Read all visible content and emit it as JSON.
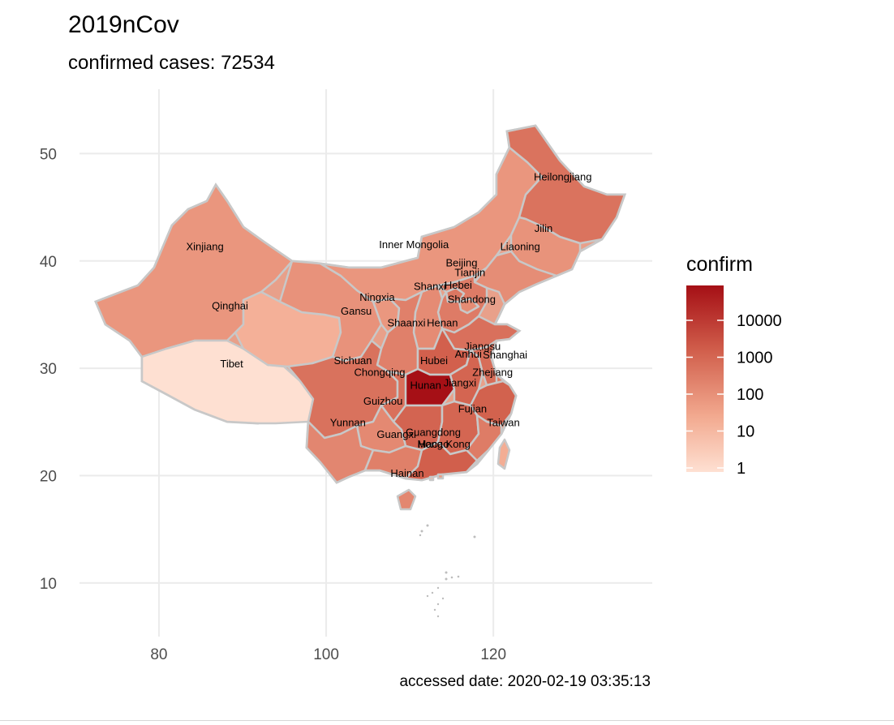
{
  "title": "2019nCov",
  "subtitle": "confirmed cases: 72534",
  "caption": "accessed date: 2020-02-19 03:35:13",
  "chart_data": {
    "type": "choropleth",
    "xlim": [
      70.5,
      139
    ],
    "ylim": [
      5,
      56
    ],
    "x_ticks": [
      80,
      100,
      120
    ],
    "y_ticks": [
      10,
      20,
      30,
      40,
      50
    ],
    "grid": true,
    "legend": {
      "title": "confirm",
      "position": "right",
      "scale": "log10",
      "breaks": [
        10000,
        1000,
        100,
        10,
        1
      ],
      "color_low": "#fee0d2",
      "color_high": "#a50f15"
    },
    "regions": [
      {
        "name": "Xinjiang",
        "confirm": 75,
        "lon": 85.5,
        "lat": 41.3
      },
      {
        "name": "Tibet",
        "confirm": 1,
        "lon": 88.7,
        "lat": 30.4
      },
      {
        "name": "Qinghai",
        "confirm": 18,
        "lon": 88.5,
        "lat": 35.8
      },
      {
        "name": "Gansu",
        "confirm": 91,
        "lon": 103.6,
        "lat": 35.3
      },
      {
        "name": "Ningxia",
        "confirm": 71,
        "lon": 106.1,
        "lat": 36.6
      },
      {
        "name": "Inner Mongolia",
        "confirm": 75,
        "lon": 110.5,
        "lat": 41.5
      },
      {
        "name": "Heilongjiang",
        "confirm": 464,
        "lon": 128.3,
        "lat": 47.8
      },
      {
        "name": "Jilin",
        "confirm": 89,
        "lon": 126.0,
        "lat": 43.0
      },
      {
        "name": "Liaoning",
        "confirm": 121,
        "lon": 123.2,
        "lat": 41.3
      },
      {
        "name": "Beijing",
        "confirm": 387,
        "lon": 116.2,
        "lat": 39.8
      },
      {
        "name": "Tianjin",
        "confirm": 130,
        "lon": 117.2,
        "lat": 38.9
      },
      {
        "name": "Hebei",
        "confirm": 302,
        "lon": 115.8,
        "lat": 37.7
      },
      {
        "name": "Shanxi",
        "confirm": 132,
        "lon": 112.4,
        "lat": 37.6
      },
      {
        "name": "Shandong",
        "confirm": 544,
        "lon": 117.4,
        "lat": 36.4
      },
      {
        "name": "Shaanxi",
        "confirm": 242,
        "lon": 109.6,
        "lat": 34.2
      },
      {
        "name": "Henan",
        "confirm": 1254,
        "lon": 113.9,
        "lat": 34.2
      },
      {
        "name": "Sichuan",
        "confirm": 508,
        "lon": 103.2,
        "lat": 30.7
      },
      {
        "name": "Chongqing",
        "confirm": 551,
        "lon": 106.4,
        "lat": 29.6
      },
      {
        "name": "Hubei",
        "confirm": 61682,
        "lon": 112.9,
        "lat": 30.7
      },
      {
        "name": "Anhui",
        "confirm": 986,
        "lon": 117.0,
        "lat": 31.3
      },
      {
        "name": "Jiangsu",
        "confirm": 631,
        "lon": 118.7,
        "lat": 32.0
      },
      {
        "name": "Shanghai",
        "confirm": 333,
        "lon": 121.4,
        "lat": 31.2
      },
      {
        "name": "Zhejiang",
        "confirm": 1175,
        "lon": 119.9,
        "lat": 29.6
      },
      {
        "name": "Hunan",
        "confirm": 1008,
        "lon": 111.9,
        "lat": 28.4
      },
      {
        "name": "Jiangxi",
        "confirm": 937,
        "lon": 116.0,
        "lat": 28.6
      },
      {
        "name": "Fujian",
        "confirm": 293,
        "lon": 117.5,
        "lat": 26.2
      },
      {
        "name": "Taiwan",
        "confirm": 22,
        "lon": 121.2,
        "lat": 24.9
      },
      {
        "name": "Guizhou",
        "confirm": 146,
        "lon": 106.8,
        "lat": 26.9
      },
      {
        "name": "Yunnan",
        "confirm": 172,
        "lon": 102.6,
        "lat": 24.9
      },
      {
        "name": "Guangxi",
        "confirm": 244,
        "lon": 108.4,
        "lat": 23.8
      },
      {
        "name": "Guangdong",
        "confirm": 1332,
        "lon": 112.8,
        "lat": 24.0
      },
      {
        "name": "Hong Kong",
        "confirm": 62,
        "lon": 114.1,
        "lat": 22.9
      },
      {
        "name": "Macao",
        "confirm": 10,
        "lon": 112.8,
        "lat": 22.9
      },
      {
        "name": "Hainan",
        "confirm": 168,
        "lon": 109.7,
        "lat": 20.2
      }
    ]
  }
}
